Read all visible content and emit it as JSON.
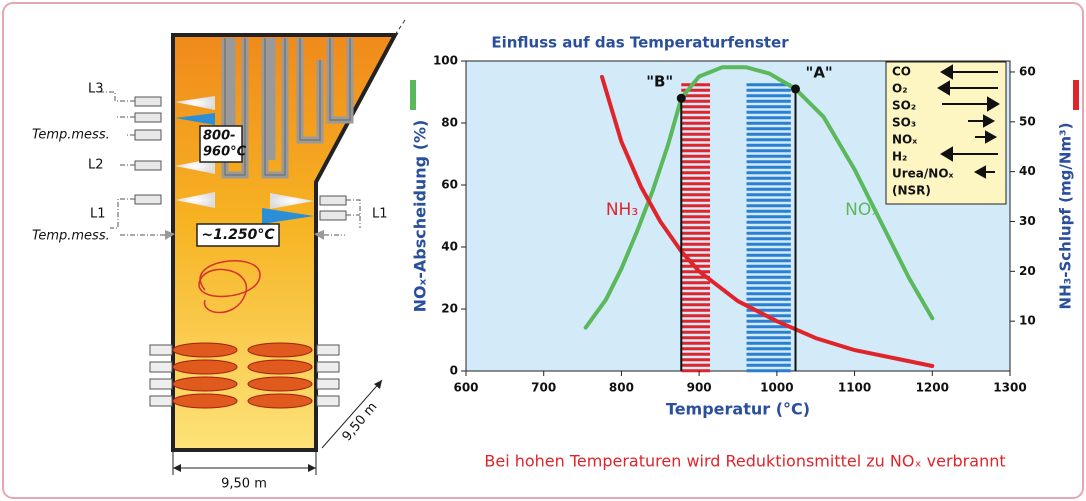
{
  "chart_data": {
    "type": "line",
    "title": "Einfluss auf das Temperaturfenster",
    "x_label": "Temperatur (°C)",
    "y_label": "NOₓ-Abscheidung (%)",
    "y2_label": "NH₃-Schlupf (mg/Nm³)",
    "caption": "Bei hohen Temperaturen wird Reduktionsmittel zu NOₓ verbrannt",
    "xlim": [
      600,
      1300
    ],
    "xticks": [
      600,
      700,
      800,
      900,
      1000,
      1100,
      1200,
      1300
    ],
    "ylim": [
      0,
      100
    ],
    "yticks": [
      0,
      20,
      40,
      60,
      80,
      100
    ],
    "y2lim": [
      0,
      62.2
    ],
    "y2ticks": [
      10,
      20,
      30,
      40,
      50,
      60
    ],
    "series": [
      {
        "name": "NOₓ",
        "color": "#5cb85c",
        "x": [
          754,
          780,
          800,
          820,
          840,
          860,
          877,
          900,
          930,
          960,
          990,
          1024,
          1060,
          1100,
          1140,
          1170,
          1200
        ],
        "values": [
          14,
          23,
          33,
          45,
          58,
          73,
          88,
          95,
          98,
          98,
          96,
          91,
          82,
          65,
          45,
          30,
          17
        ]
      },
      {
        "name": "NH₃",
        "color": "#e0242b",
        "axis": "y2",
        "x": [
          775,
          800,
          825,
          850,
          877,
          900,
          950,
          1000,
          1050,
          1100,
          1150,
          1200
        ],
        "values": [
          59,
          46,
          37,
          30,
          24,
          20,
          14,
          10,
          6.6,
          4.2,
          2.6,
          1.0
        ]
      }
    ],
    "bands": [
      {
        "x": [
          877,
          914
        ],
        "top": 93,
        "color": "#e0242b"
      },
      {
        "x": [
          961,
          1018
        ],
        "top": 93,
        "color": "#2a7fd0"
      }
    ],
    "markers": [
      {
        "label": "\"B\"",
        "x": 877,
        "value": 88
      },
      {
        "label": "\"A\"",
        "x": 1024,
        "value": 91
      }
    ],
    "legend_box": [
      "CO",
      "O₂",
      "SO₂",
      "SO₃",
      "NOₓ",
      "H₂",
      "Urea/NOₓ",
      "(NSR)"
    ]
  },
  "diagram": {
    "L3": "L3",
    "temp_upper": "Temp.mess.",
    "window_1": "800-",
    "window_2": "960°C",
    "L2": "L2",
    "L1_left": "L1",
    "L1_right": "L1",
    "temp_lower": "Temp.mess.",
    "flame_temp": "~1.250°C",
    "width": "9,50 m",
    "depth": "9,50 m"
  }
}
